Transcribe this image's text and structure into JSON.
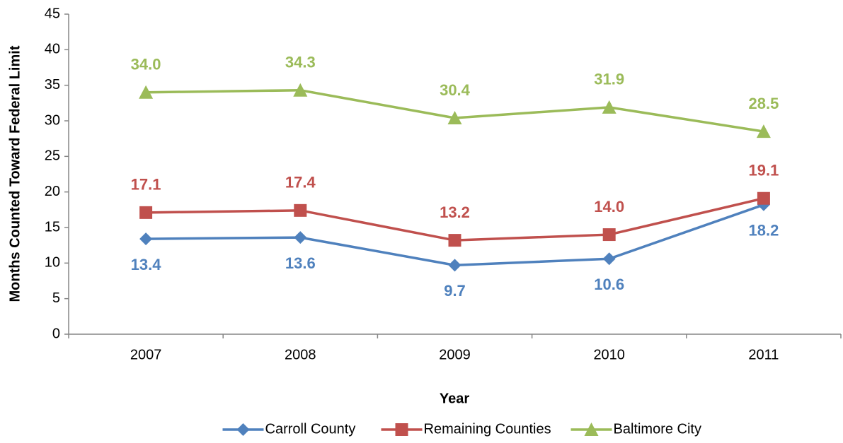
{
  "chart_data": {
    "type": "line",
    "x_label": "Year",
    "y_label": "Months Counted Toward Federal Limit",
    "categories": [
      "2007",
      "2008",
      "2009",
      "2010",
      "2011"
    ],
    "series": [
      {
        "name": "Carroll County",
        "color": "#4f81bd",
        "marker": "diamond",
        "label_position": "below",
        "values": [
          13.4,
          13.6,
          9.7,
          10.6,
          18.2
        ],
        "value_labels": [
          "13.4",
          "13.6",
          "9.7",
          "10.6",
          "18.2"
        ]
      },
      {
        "name": "Remaining Counties",
        "color": "#c0504d",
        "marker": "square",
        "label_position": "above",
        "values": [
          17.1,
          17.4,
          13.2,
          14.0,
          19.1
        ],
        "value_labels": [
          "17.1",
          "17.4",
          "13.2",
          "14.0",
          "19.1"
        ]
      },
      {
        "name": "Baltimore City",
        "color": "#9bbb59",
        "marker": "triangle",
        "label_position": "above",
        "values": [
          34.0,
          34.3,
          30.4,
          31.9,
          28.5
        ],
        "value_labels": [
          "34.0",
          "34.3",
          "30.4",
          "31.9",
          "28.5"
        ]
      }
    ],
    "ylim": [
      0,
      45
    ],
    "yticks": [
      0,
      5,
      10,
      15,
      20,
      25,
      30,
      35,
      40,
      45
    ],
    "grid": false,
    "legend": "bottom"
  }
}
